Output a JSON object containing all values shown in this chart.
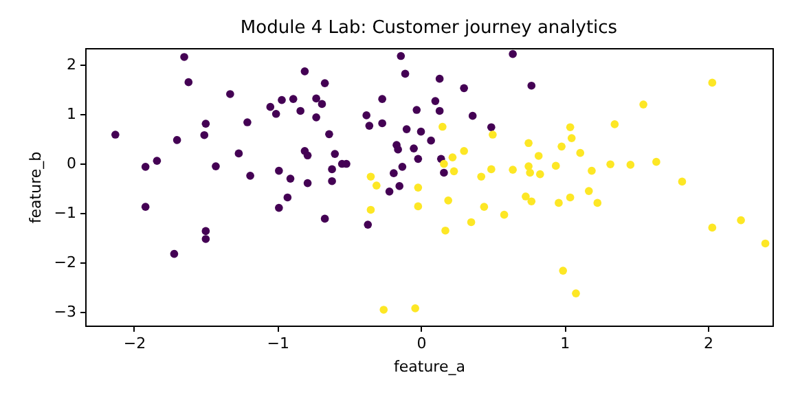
{
  "chart_data": {
    "type": "scatter",
    "title": "Module 4 Lab: Customer journey analytics",
    "xlabel": "feature_a",
    "ylabel": "feature_b",
    "xlim": [
      -2.34,
      2.45
    ],
    "ylim": [
      -3.28,
      2.33
    ],
    "xticks": [
      -2,
      -1,
      0,
      1,
      2
    ],
    "yticks": [
      -3,
      -2,
      -1,
      0,
      1,
      2
    ],
    "grid": false,
    "legend": false,
    "marker": "circle",
    "series": [
      {
        "color": "#440154",
        "x": [
          -1.65,
          -1.62,
          -2.13,
          -1.7,
          -1.92,
          -1.84,
          -1.92,
          -1.72,
          -1.5,
          -1.5,
          -1.5,
          -1.51,
          -1.43,
          -1.33,
          -1.21,
          -1.27,
          -1.19,
          -1.05,
          -1.01,
          -0.97,
          -0.89,
          -0.84,
          -0.81,
          -0.81,
          -0.79,
          -0.99,
          -0.91,
          -0.79,
          -0.93,
          -0.99,
          -0.73,
          -0.73,
          -0.67,
          -0.69,
          -0.64,
          -0.6,
          -0.62,
          -0.55,
          -0.52,
          -0.62,
          -0.67,
          -0.14,
          -0.11,
          0.13,
          0.3,
          0.64,
          0.77,
          -0.27,
          -0.38,
          -0.36,
          -0.27,
          -0.03,
          0.1,
          0.13,
          0.36,
          0.49,
          -0.1,
          0.0,
          -0.17,
          -0.16,
          -0.05,
          0.07,
          -0.02,
          0.14,
          -0.13,
          -0.19,
          0.16,
          -0.15,
          -0.22,
          -0.37
        ],
        "values": [
          2.15,
          1.64,
          0.58,
          0.47,
          -0.07,
          0.05,
          -0.88,
          -1.83,
          -1.37,
          -1.53,
          0.8,
          0.57,
          -0.06,
          1.4,
          0.83,
          0.2,
          -0.25,
          1.14,
          1.0,
          1.28,
          1.3,
          1.06,
          1.86,
          0.25,
          0.16,
          -0.15,
          -0.31,
          -0.4,
          -0.69,
          -0.9,
          1.31,
          0.93,
          1.62,
          1.2,
          0.59,
          0.19,
          -0.12,
          -0.01,
          -0.01,
          -0.36,
          -1.12,
          2.17,
          1.81,
          1.71,
          1.52,
          2.21,
          1.57,
          1.3,
          0.97,
          0.76,
          0.81,
          1.08,
          1.26,
          1.06,
          0.96,
          0.73,
          0.69,
          0.64,
          0.37,
          0.28,
          0.3,
          0.46,
          0.09,
          0.09,
          -0.07,
          -0.2,
          -0.19,
          -0.46,
          -0.57,
          -1.24
        ]
      },
      {
        "color": "#fde725",
        "x": [
          0.15,
          0.5,
          0.75,
          0.3,
          0.22,
          0.16,
          0.23,
          0.42,
          0.49,
          0.64,
          0.75,
          -0.35,
          -0.31,
          -0.02,
          -0.02,
          -0.35,
          0.19,
          0.44,
          0.58,
          0.35,
          0.17,
          0.73,
          0.77,
          -0.26,
          -0.04,
          2.03,
          1.55,
          1.35,
          1.04,
          1.05,
          0.98,
          0.82,
          1.11,
          0.76,
          0.83,
          0.94,
          1.19,
          1.32,
          1.46,
          1.64,
          1.82,
          1.17,
          0.96,
          1.04,
          1.23,
          2.03,
          2.23,
          2.4,
          0.99,
          1.08
        ],
        "values": [
          0.74,
          0.58,
          0.41,
          0.25,
          0.12,
          -0.01,
          -0.16,
          -0.27,
          -0.12,
          -0.13,
          -0.06,
          -0.27,
          -0.45,
          -0.49,
          -0.87,
          -0.94,
          -0.75,
          -0.88,
          -1.04,
          -1.19,
          -1.36,
          -0.67,
          -0.77,
          -2.96,
          -2.93,
          1.63,
          1.19,
          0.79,
          0.73,
          0.51,
          0.34,
          0.15,
          0.21,
          -0.19,
          -0.22,
          -0.05,
          -0.15,
          -0.02,
          -0.03,
          0.03,
          -0.37,
          -0.56,
          -0.8,
          -0.69,
          -0.8,
          -1.3,
          -1.15,
          -1.62,
          -2.17,
          -2.63
        ]
      }
    ]
  }
}
